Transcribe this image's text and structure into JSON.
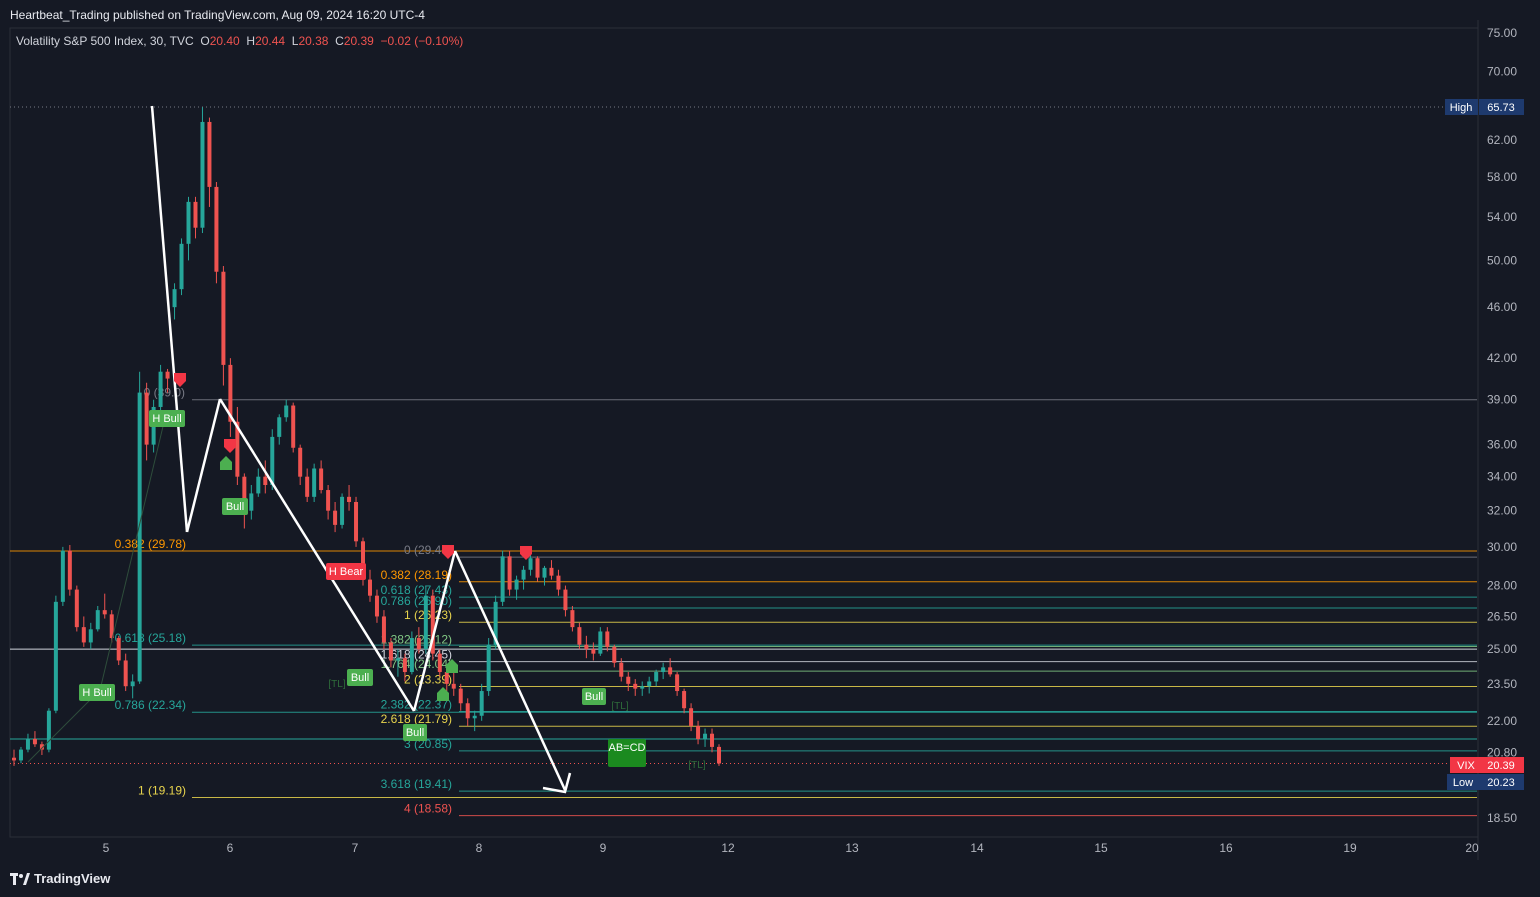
{
  "header": {
    "publisher_line": "Heartbeat_Trading published on TradingView.com, Aug 09, 2024 16:20 UTC-4"
  },
  "legend": {
    "symbol": "Volatility S&P 500 Index, 30, TVC",
    "open_label": "O",
    "open": "20.40",
    "high_label": "H",
    "high": "20.44",
    "low_label": "L",
    "low": "20.38",
    "close_label": "C",
    "close": "20.39",
    "change": "−0.02 (−0.10%)"
  },
  "brand": {
    "name": "TradingView"
  },
  "colors": {
    "background": "#151924",
    "up": "#26a69a",
    "down": "#ef5350",
    "fib_yellow": "#e8d44d",
    "fib_orange": "#ff9800",
    "fib_teal": "#26a69a",
    "fib_green": "#81c784",
    "fib_white": "#d1d4dc",
    "fib_red": "#ef5350",
    "bull_label": "#4caf50",
    "bear_label": "#f23645",
    "price_blue": "#2962ff"
  },
  "chart_data": {
    "type": "candlestick",
    "symbol": "VIX",
    "y_scale": "log",
    "ylim": [
      18.0,
      76.0
    ],
    "yticks": [
      "75.00",
      "70.00",
      "62.00",
      "58.00",
      "54.00",
      "50.00",
      "46.00",
      "42.00",
      "39.00",
      "36.00",
      "34.00",
      "32.00",
      "30.00",
      "28.00",
      "26.50",
      "25.00",
      "23.50",
      "22.00",
      "20.80",
      "18.50"
    ],
    "xticks": [
      "5",
      "6",
      "7",
      "8",
      "9",
      "12",
      "13",
      "14",
      "15",
      "16",
      "19",
      "20"
    ],
    "price_markers": [
      {
        "label": "High",
        "value": "65.73",
        "color": "#1e3a6e"
      },
      {
        "label": "VIX",
        "value": "20.39",
        "color": "#f23645"
      },
      {
        "label": "Low",
        "value": "20.23",
        "color": "#1e3a6e"
      }
    ],
    "candles": [
      [
        20.6,
        20.9,
        20.3,
        20.5
      ],
      [
        20.5,
        21.0,
        20.4,
        20.9
      ],
      [
        20.9,
        21.5,
        20.8,
        21.3
      ],
      [
        21.3,
        21.6,
        21.0,
        21.1
      ],
      [
        21.1,
        21.2,
        20.7,
        20.9
      ],
      [
        20.9,
        22.5,
        20.8,
        22.4
      ],
      [
        22.4,
        27.5,
        22.3,
        27.2
      ],
      [
        27.2,
        30.0,
        27.0,
        29.8
      ],
      [
        29.8,
        30.1,
        27.5,
        27.8
      ],
      [
        27.8,
        28.0,
        25.8,
        26.0
      ],
      [
        26.0,
        26.5,
        25.1,
        25.3
      ],
      [
        25.3,
        26.2,
        25.0,
        25.9
      ],
      [
        25.9,
        27.0,
        25.8,
        26.8
      ],
      [
        26.8,
        27.6,
        26.4,
        26.6
      ],
      [
        26.6,
        26.8,
        25.3,
        25.5
      ],
      [
        25.5,
        25.6,
        24.3,
        24.5
      ],
      [
        24.5,
        24.8,
        23.2,
        23.4
      ],
      [
        23.4,
        23.9,
        22.9,
        23.6
      ],
      [
        23.6,
        41.0,
        23.5,
        39.5
      ],
      [
        39.5,
        40.2,
        35.0,
        36.0
      ],
      [
        36.0,
        39.0,
        35.5,
        38.5
      ],
      [
        38.5,
        41.5,
        38.0,
        41.0
      ],
      [
        41.0,
        41.2,
        39.5,
        40.5
      ],
      [
        46.0,
        48.0,
        45.0,
        47.5
      ],
      [
        47.5,
        52.0,
        47.0,
        51.5
      ],
      [
        51.5,
        56.0,
        50.0,
        55.5
      ],
      [
        55.5,
        56.0,
        52.0,
        53.0
      ],
      [
        53.0,
        65.7,
        52.5,
        64.0
      ],
      [
        64.0,
        64.5,
        55.0,
        57.0
      ],
      [
        57.0,
        57.5,
        48.0,
        49.0
      ],
      [
        49.0,
        49.5,
        40.0,
        41.5
      ],
      [
        41.5,
        42.0,
        36.5,
        37.5
      ],
      [
        37.5,
        38.5,
        33.5,
        34.0
      ],
      [
        34.0,
        34.2,
        31.0,
        32.0
      ],
      [
        32.0,
        33.5,
        31.5,
        33.0
      ],
      [
        33.0,
        34.5,
        32.8,
        34.0
      ],
      [
        34.0,
        35.0,
        33.0,
        33.5
      ],
      [
        33.5,
        37.0,
        33.2,
        36.5
      ],
      [
        36.5,
        38.0,
        36.0,
        37.8
      ],
      [
        37.8,
        39.0,
        37.5,
        38.6
      ],
      [
        38.6,
        38.8,
        35.5,
        35.8
      ],
      [
        35.8,
        36.0,
        33.5,
        34.0
      ],
      [
        34.0,
        34.5,
        32.5,
        32.8
      ],
      [
        32.8,
        34.8,
        32.5,
        34.5
      ],
      [
        34.5,
        35.0,
        33.0,
        33.2
      ],
      [
        33.2,
        33.5,
        31.5,
        32.0
      ],
      [
        32.0,
        32.5,
        30.8,
        31.2
      ],
      [
        31.2,
        33.0,
        31.0,
        32.8
      ],
      [
        32.8,
        33.5,
        32.0,
        32.5
      ],
      [
        32.5,
        32.8,
        30.0,
        30.3
      ],
      [
        30.3,
        30.5,
        28.0,
        28.3
      ],
      [
        28.3,
        28.8,
        27.2,
        27.5
      ],
      [
        27.5,
        27.8,
        26.2,
        26.5
      ],
      [
        26.5,
        26.8,
        25.0,
        25.3
      ],
      [
        25.3,
        25.5,
        24.2,
        24.5
      ],
      [
        24.5,
        25.0,
        23.8,
        24.6
      ],
      [
        24.6,
        24.8,
        23.6,
        24.0
      ],
      [
        24.0,
        25.8,
        23.9,
        25.5
      ],
      [
        25.5,
        26.0,
        24.8,
        25.0
      ],
      [
        25.0,
        28.0,
        24.8,
        27.5
      ],
      [
        27.5,
        27.8,
        24.5,
        24.8
      ],
      [
        24.8,
        25.0,
        23.8,
        24.0
      ],
      [
        24.0,
        24.3,
        23.2,
        23.5
      ],
      [
        23.5,
        24.0,
        23.0,
        23.3
      ],
      [
        23.3,
        23.5,
        22.4,
        22.7
      ],
      [
        22.7,
        22.9,
        21.8,
        22.1
      ],
      [
        22.1,
        22.4,
        21.6,
        22.2
      ],
      [
        22.2,
        23.5,
        22.0,
        23.2
      ],
      [
        23.2,
        25.5,
        23.0,
        25.2
      ],
      [
        25.2,
        27.5,
        25.0,
        27.2
      ],
      [
        27.2,
        29.8,
        27.0,
        29.5
      ],
      [
        29.5,
        29.8,
        27.5,
        27.8
      ],
      [
        27.8,
        28.5,
        27.3,
        28.3
      ],
      [
        28.3,
        29.0,
        27.8,
        28.8
      ],
      [
        28.8,
        29.6,
        28.5,
        29.4
      ],
      [
        29.4,
        29.5,
        28.2,
        28.4
      ],
      [
        28.4,
        29.0,
        28.0,
        28.9
      ],
      [
        28.9,
        29.3,
        28.3,
        28.5
      ],
      [
        28.5,
        28.8,
        27.5,
        27.8
      ],
      [
        27.8,
        28.0,
        26.5,
        26.8
      ],
      [
        26.8,
        27.0,
        25.8,
        26.0
      ],
      [
        26.0,
        26.2,
        25.0,
        25.2
      ],
      [
        25.2,
        25.6,
        24.6,
        25.0
      ],
      [
        25.0,
        25.3,
        24.5,
        24.8
      ],
      [
        24.8,
        26.0,
        24.7,
        25.8
      ],
      [
        25.8,
        26.0,
        24.9,
        25.1
      ],
      [
        25.1,
        25.2,
        24.2,
        24.4
      ],
      [
        24.4,
        24.6,
        23.6,
        23.8
      ],
      [
        23.8,
        24.0,
        23.2,
        23.5
      ],
      [
        23.5,
        23.7,
        23.0,
        23.3
      ],
      [
        23.3,
        23.6,
        23.0,
        23.4
      ],
      [
        23.4,
        23.8,
        23.1,
        23.6
      ],
      [
        23.6,
        24.1,
        23.4,
        24.0
      ],
      [
        24.0,
        24.4,
        23.7,
        24.2
      ],
      [
        24.2,
        24.6,
        23.8,
        23.9
      ],
      [
        23.9,
        24.0,
        23.0,
        23.2
      ],
      [
        23.2,
        23.3,
        22.3,
        22.5
      ],
      [
        22.5,
        22.7,
        21.6,
        21.8
      ],
      [
        21.8,
        22.0,
        21.1,
        21.3
      ],
      [
        21.3,
        21.7,
        21.0,
        21.5
      ],
      [
        21.5,
        21.7,
        20.8,
        21.0
      ],
      [
        21.0,
        21.1,
        20.3,
        20.39
      ]
    ],
    "fib_levels": [
      {
        "label": "0 (39.0)",
        "value": 39.0,
        "color": "#787b86"
      },
      {
        "label": "0.382 (29.78)",
        "value": 29.78,
        "color": "#ff9800"
      },
      {
        "label": "0.618 (25.18)",
        "value": 25.18,
        "color": "#26a69a"
      },
      {
        "label": "0.786 (22.34)",
        "value": 22.34,
        "color": "#26a69a"
      },
      {
        "label": "1 (19.19)",
        "value": 19.19,
        "color": "#e8d44d"
      },
      {
        "label": "0 (29.46)",
        "value": 29.46,
        "color": "#787b86"
      },
      {
        "label": "0.382 (28.19)",
        "value": 28.19,
        "color": "#ff9800"
      },
      {
        "label": "0.618 (27.43)",
        "value": 27.43,
        "color": "#26a69a"
      },
      {
        "label": "0.786 (26.90)",
        "value": 26.9,
        "color": "#26a69a"
      },
      {
        "label": "1 (26.23)",
        "value": 26.23,
        "color": "#e8d44d"
      },
      {
        "label": "1.382 (25.12)",
        "value": 25.12,
        "color": "#81c784"
      },
      {
        "label": "1.618 (24.45)",
        "value": 24.45,
        "color": "#d1d4dc"
      },
      {
        "label": "1.764 (24.04)",
        "value": 24.04,
        "color": "#81c784"
      },
      {
        "label": "2 (23.39)",
        "value": 23.39,
        "color": "#e8d44d"
      },
      {
        "label": "2.382 (22.37)",
        "value": 22.37,
        "color": "#26a69a"
      },
      {
        "label": "2.618 (21.79)",
        "value": 21.79,
        "color": "#e8d44d"
      },
      {
        "label": "3 (20.85)",
        "value": 20.85,
        "color": "#26a69a"
      },
      {
        "label": "3.618 (19.41)",
        "value": 19.41,
        "color": "#26a69a"
      },
      {
        "label": "4 (18.58)",
        "value": 18.58,
        "color": "#ef5350"
      }
    ],
    "signals": [
      {
        "text": "H Bull",
        "color": "#4caf50"
      },
      {
        "text": "H Bull",
        "color": "#4caf50"
      },
      {
        "text": "Bull",
        "color": "#4caf50"
      },
      {
        "text": "H Bear",
        "color": "#f23645"
      },
      {
        "text": "Bull",
        "color": "#4caf50"
      },
      {
        "text": "Bull",
        "color": "#4caf50"
      },
      {
        "text": "Bull",
        "color": "#4caf50"
      },
      {
        "text": "AB=CD",
        "color": "#1b8a1f"
      }
    ],
    "faint_tags": [
      "[TL]",
      "[TL]",
      "[TL]"
    ]
  }
}
